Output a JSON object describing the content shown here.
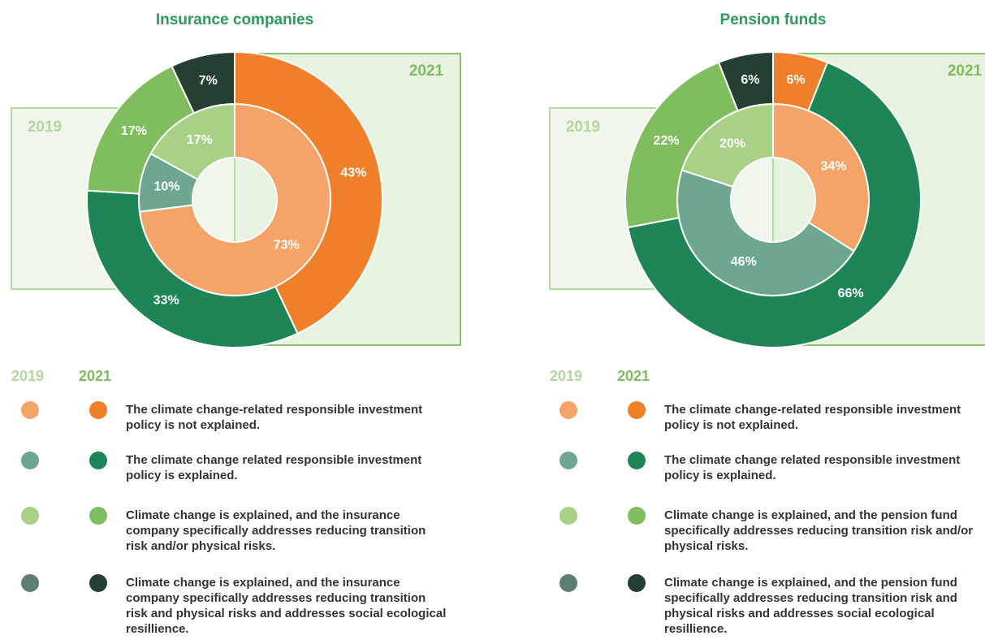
{
  "chart_data": [
    {
      "type": "pie",
      "title": "Insurance companies",
      "categories": [
        "The climate change-related responsible investment policy is not explained.",
        "The climate change related responsible investment policy is explained.",
        "Climate change is explained, and the insurance company specifically addresses reducing transition risk and/or physical risks.",
        "Climate change is explained, and the insurance company specifically addresses reducing transition risk and physical risks and addresses social ecological resillience."
      ],
      "series": [
        {
          "name": "2019",
          "colors": [
            "#f4a468",
            "#6da78f",
            "#a8d187",
            "#5b7f70"
          ],
          "values": [
            73,
            10,
            17,
            0
          ],
          "value_labels": [
            "73%",
            "10%",
            "17%",
            null
          ]
        },
        {
          "name": "2021",
          "colors": [
            "#f07f2a",
            "#1e8557",
            "#80bd5f",
            "#263f33"
          ],
          "values": [
            43,
            33,
            17,
            7
          ],
          "value_labels": [
            "43%",
            "33%",
            "17%",
            "7%"
          ]
        }
      ]
    },
    {
      "type": "pie",
      "title": "Pension funds",
      "categories": [
        "The climate change-related responsible investment policy is not explained.",
        "The climate change related responsible investment policy is explained.",
        "Climate change is explained, and the pension fund specifically addresses reducing transition risk and/or physical risks.",
        "Climate change is explained, and the pension fund specifically addresses reducing transition risk and physical risks and addresses social ecological resillience."
      ],
      "series": [
        {
          "name": "2019",
          "colors": [
            "#f4a468",
            "#6da78f",
            "#a8d187",
            "#5b7f70"
          ],
          "values": [
            34,
            46,
            20,
            0
          ],
          "value_labels": [
            "34%",
            "46%",
            "20%",
            null
          ]
        },
        {
          "name": "2021",
          "colors": [
            "#f07f2a",
            "#1e8557",
            "#80bd5f",
            "#263f33"
          ],
          "values": [
            6,
            66,
            22,
            6
          ],
          "value_labels": [
            "6%",
            "66%",
            "22%",
            "6%"
          ]
        }
      ]
    }
  ]
}
